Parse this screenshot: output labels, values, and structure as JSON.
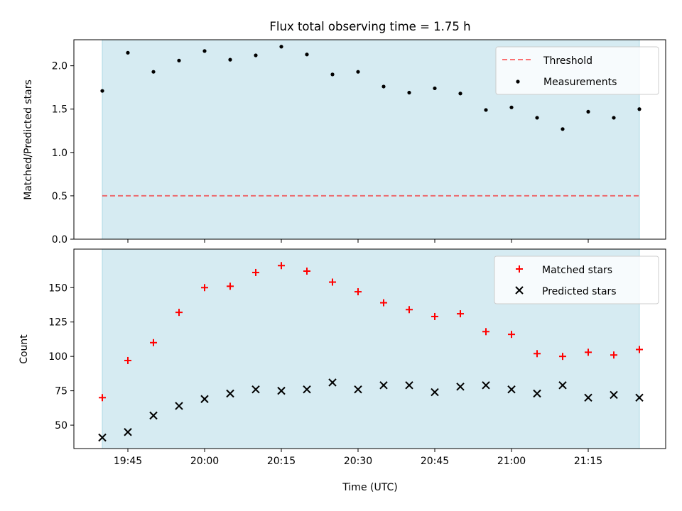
{
  "title": "Flux total observing time = 1.75 h",
  "xlabel": "Time (UTC)",
  "colors": {
    "shade": "#add8e6",
    "threshold": "#ff0000",
    "matched": "#ff0000",
    "predicted": "#000000",
    "measurements": "#000000"
  },
  "chart_data": [
    {
      "type": "scatter",
      "ylabel": "Matched/Predicted stars",
      "ylim": [
        0,
        2.3
      ],
      "yticks": [
        0.0,
        0.5,
        1.0,
        1.5,
        2.0
      ],
      "ytick_labels": [
        "0.0",
        "0.5",
        "1.0",
        "1.5",
        "2.0"
      ],
      "shaded_span": [
        "19:40",
        "21:25"
      ],
      "threshold": {
        "name": "Threshold",
        "value": 0.5,
        "style": "dashed"
      },
      "legend": {
        "placement": "top-right",
        "entries": [
          "Threshold",
          "Measurements"
        ]
      },
      "series": [
        {
          "name": "Measurements",
          "marker": "dot",
          "x": [
            "19:40",
            "19:45",
            "19:50",
            "19:55",
            "20:00",
            "20:05",
            "20:10",
            "20:15",
            "20:20",
            "20:25",
            "20:30",
            "20:35",
            "20:40",
            "20:45",
            "20:50",
            "20:55",
            "21:00",
            "21:05",
            "21:10",
            "21:15",
            "21:20",
            "21:25"
          ],
          "values": [
            1.71,
            2.15,
            1.93,
            2.06,
            2.17,
            2.07,
            2.12,
            2.22,
            2.13,
            1.9,
            1.93,
            1.76,
            1.69,
            1.74,
            1.68,
            1.49,
            1.52,
            1.4,
            1.27,
            1.47,
            1.4,
            1.5
          ]
        }
      ]
    },
    {
      "type": "scatter",
      "ylabel": "Count",
      "ylim": [
        33,
        178
      ],
      "yticks": [
        50,
        75,
        100,
        125,
        150
      ],
      "ytick_labels": [
        "50",
        "75",
        "100",
        "125",
        "150"
      ],
      "shaded_span": [
        "19:40",
        "21:25"
      ],
      "xticks": [
        "19:45",
        "20:00",
        "20:15",
        "20:30",
        "20:45",
        "21:00",
        "21:15"
      ],
      "xtick_labels": [
        "19:45",
        "20:00",
        "20:15",
        "20:30",
        "20:45",
        "21:00",
        "21:15"
      ],
      "legend": {
        "placement": "top-right",
        "entries": [
          "Matched stars",
          "Predicted stars"
        ]
      },
      "series": [
        {
          "name": "Matched stars",
          "marker": "plus",
          "x": [
            "19:40",
            "19:45",
            "19:50",
            "19:55",
            "20:00",
            "20:05",
            "20:10",
            "20:15",
            "20:20",
            "20:25",
            "20:30",
            "20:35",
            "20:40",
            "20:45",
            "20:50",
            "20:55",
            "21:00",
            "21:05",
            "21:10",
            "21:15",
            "21:20",
            "21:25"
          ],
          "values": [
            70,
            97,
            110,
            132,
            150,
            151,
            161,
            166,
            162,
            154,
            147,
            139,
            134,
            129,
            131,
            118,
            116,
            102,
            100,
            103,
            101,
            105
          ]
        },
        {
          "name": "Predicted stars",
          "marker": "x",
          "x": [
            "19:40",
            "19:45",
            "19:50",
            "19:55",
            "20:00",
            "20:05",
            "20:10",
            "20:15",
            "20:20",
            "20:25",
            "20:30",
            "20:35",
            "20:40",
            "20:45",
            "20:50",
            "20:55",
            "21:00",
            "21:05",
            "21:10",
            "21:15",
            "21:20",
            "21:25"
          ],
          "values": [
            41,
            45,
            57,
            64,
            69,
            73,
            76,
            75,
            76,
            81,
            76,
            79,
            79,
            74,
            78,
            79,
            76,
            73,
            79,
            70,
            72,
            70
          ]
        }
      ]
    }
  ]
}
